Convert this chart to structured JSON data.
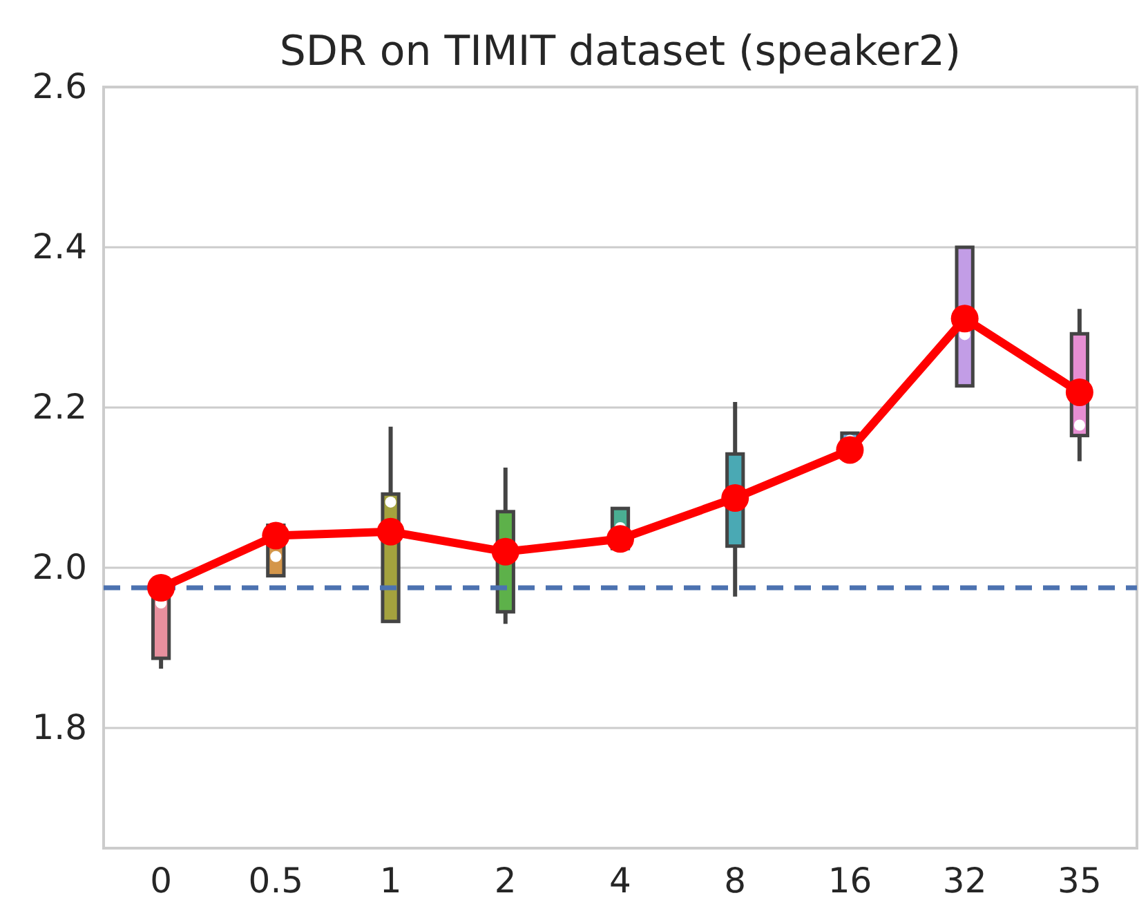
{
  "chart_data": {
    "type": "box",
    "title": "SDR on TIMIT dataset (speaker2)",
    "categories": [
      "0",
      "0.5",
      "1",
      "2",
      "4",
      "8",
      "16",
      "32",
      "35"
    ],
    "colors": [
      "#e8909e",
      "#d4964a",
      "#a4a23e",
      "#5db14a",
      "#4aae92",
      "#4aa9b4",
      "#6aace0",
      "#c29de6",
      "#e68ed2"
    ],
    "boxes": [
      {
        "low": 1.874,
        "q1": 1.887,
        "median": 1.956,
        "q3": 1.979,
        "high": 1.979
      },
      {
        "low": 1.99,
        "q1": 1.99,
        "median": 2.014,
        "q3": 2.053,
        "high": 2.053
      },
      {
        "low": 1.933,
        "q1": 1.933,
        "median": 2.082,
        "q3": 2.092,
        "high": 2.176
      },
      {
        "low": 1.93,
        "q1": 1.945,
        "median": 2.014,
        "q3": 2.07,
        "high": 2.125
      },
      {
        "low": 2.024,
        "q1": 2.024,
        "median": 2.05,
        "q3": 2.074,
        "high": 2.074
      },
      {
        "low": 1.964,
        "q1": 2.027,
        "median": 2.082,
        "q3": 2.142,
        "high": 2.207
      },
      {
        "low": 2.138,
        "q1": 2.138,
        "median": 2.159,
        "q3": 2.168,
        "high": 2.168
      },
      {
        "low": 2.227,
        "q1": 2.227,
        "median": 2.291,
        "q3": 2.4,
        "high": 2.4
      },
      {
        "low": 2.133,
        "q1": 2.165,
        "median": 2.178,
        "q3": 2.292,
        "high": 2.323
      }
    ],
    "series": [
      {
        "type": "line",
        "color": "#ff0000",
        "x": [
          "0",
          "0.5",
          "1",
          "2",
          "4",
          "8",
          "16",
          "32",
          "35"
        ],
        "values": [
          1.975,
          2.04,
          2.045,
          2.02,
          2.036,
          2.087,
          2.147,
          2.311,
          2.219
        ],
        "marker": "circle",
        "line_style": "solid"
      }
    ],
    "ref_lines": [
      {
        "axis": "y",
        "value": 1.975,
        "color": "#4c72b0",
        "line_style": "dashed"
      }
    ],
    "ylim": [
      1.65,
      2.6
    ],
    "yticks": [
      1.8,
      {
        "value": 2,
        "label": "2.0"
      },
      2.2,
      2.4,
      2.6
    ],
    "grid": "y"
  }
}
